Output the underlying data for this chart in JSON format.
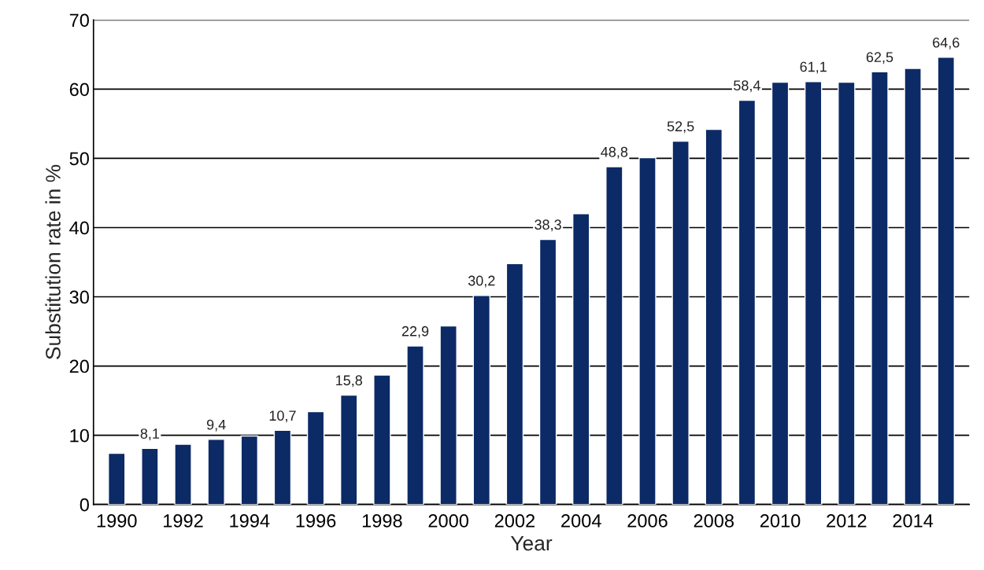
{
  "chart_data": {
    "type": "bar",
    "xlabel": "Year",
    "ylabel": "Substitution rate in %",
    "categories": [
      "1990",
      null,
      "1992",
      null,
      "1994",
      null,
      "1996",
      null,
      "1998",
      null,
      "2000",
      null,
      "2002",
      null,
      "2004",
      null,
      "2006",
      null,
      "2008",
      null,
      "2010",
      null,
      "2012",
      null,
      "2014",
      null
    ],
    "values": [
      7.4,
      8.1,
      8.7,
      9.4,
      9.9,
      10.7,
      13.4,
      15.8,
      18.7,
      22.9,
      25.8,
      30.2,
      34.8,
      38.3,
      42.0,
      48.8,
      50.1,
      52.5,
      54.2,
      58.4,
      61.0,
      61.1,
      61.0,
      62.5,
      63.0,
      64.6
    ],
    "value_labels": [
      null,
      "8,1",
      null,
      "9,4",
      null,
      "10,7",
      null,
      "15,8",
      null,
      "22,9",
      null,
      "30,2",
      null,
      "38,3",
      null,
      "48,8",
      null,
      "52,5",
      null,
      "58,4",
      null,
      "61,1",
      null,
      "62,5",
      null,
      "64,6"
    ],
    "color": "#0b2a66",
    "ylim": [
      0,
      70
    ],
    "yticks": [
      0,
      10,
      20,
      30,
      40,
      50,
      60,
      70
    ],
    "grid": "y"
  }
}
